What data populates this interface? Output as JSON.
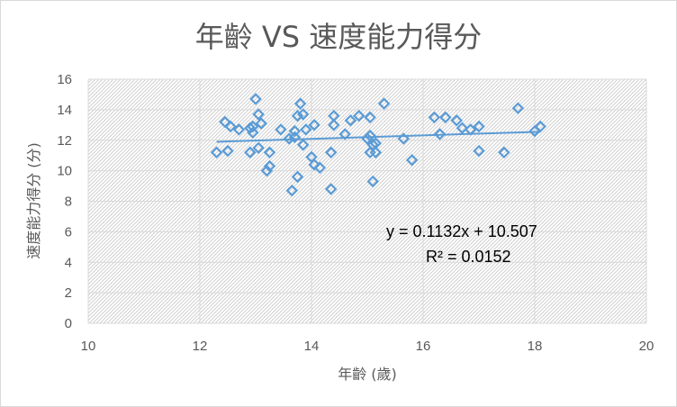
{
  "chart_data": {
    "type": "scatter",
    "title": "年齡 VS 速度能力得分",
    "xlabel": "年齡 (歲)",
    "ylabel": "速度能力得分 (分)",
    "xlim": [
      10,
      20
    ],
    "ylim": [
      0,
      16
    ],
    "x_ticks": [
      "10",
      "12",
      "14",
      "16",
      "18",
      "20"
    ],
    "y_ticks": [
      "0",
      "2",
      "4",
      "6",
      "8",
      "10",
      "12",
      "14",
      "16"
    ],
    "grid": true,
    "legend": "none",
    "background_pattern": "diagonal-hatch",
    "marker_color": "#5b9bd5",
    "marker": "diamond-hollow",
    "trendline": {
      "type": "linear",
      "slope": 0.1132,
      "intercept": 10.507,
      "x_range": [
        12.3,
        18.1
      ],
      "equation_label": "y = 0.1132x + 10.507",
      "r2_label": "R² = 0.0152"
    },
    "points": [
      [
        12.3,
        11.2
      ],
      [
        12.45,
        13.2
      ],
      [
        12.5,
        11.3
      ],
      [
        12.55,
        12.9
      ],
      [
        12.7,
        12.7
      ],
      [
        12.9,
        12.8
      ],
      [
        12.9,
        11.2
      ],
      [
        12.95,
        12.9
      ],
      [
        12.95,
        12.5
      ],
      [
        13.0,
        14.7
      ],
      [
        13.05,
        11.5
      ],
      [
        13.05,
        13.7
      ],
      [
        13.1,
        13.1
      ],
      [
        13.2,
        10.0
      ],
      [
        13.25,
        11.2
      ],
      [
        13.25,
        10.3
      ],
      [
        13.45,
        12.7
      ],
      [
        13.6,
        12.1
      ],
      [
        13.65,
        8.7
      ],
      [
        13.7,
        12.2
      ],
      [
        13.7,
        12.6
      ],
      [
        13.75,
        13.6
      ],
      [
        13.75,
        9.6
      ],
      [
        13.8,
        14.4
      ],
      [
        13.85,
        11.7
      ],
      [
        13.85,
        13.7
      ],
      [
        13.9,
        12.7
      ],
      [
        14.0,
        10.9
      ],
      [
        14.05,
        13.0
      ],
      [
        14.05,
        10.4
      ],
      [
        14.15,
        10.2
      ],
      [
        14.35,
        8.8
      ],
      [
        14.35,
        11.2
      ],
      [
        14.4,
        13.0
      ],
      [
        14.4,
        13.6
      ],
      [
        14.6,
        12.4
      ],
      [
        14.7,
        13.3
      ],
      [
        14.85,
        13.6
      ],
      [
        15.0,
        12.1
      ],
      [
        15.05,
        12.3
      ],
      [
        15.05,
        11.2
      ],
      [
        15.05,
        13.5
      ],
      [
        15.1,
        9.3
      ],
      [
        15.1,
        11.7
      ],
      [
        15.15,
        11.2
      ],
      [
        15.15,
        11.8
      ],
      [
        15.3,
        14.4
      ],
      [
        15.65,
        12.1
      ],
      [
        15.8,
        10.7
      ],
      [
        16.2,
        13.5
      ],
      [
        16.3,
        12.4
      ],
      [
        16.4,
        13.5
      ],
      [
        16.6,
        13.3
      ],
      [
        16.7,
        12.8
      ],
      [
        16.85,
        12.7
      ],
      [
        17.0,
        12.9
      ],
      [
        17.0,
        11.3
      ],
      [
        17.45,
        11.2
      ],
      [
        17.7,
        14.1
      ],
      [
        18.0,
        12.6
      ],
      [
        18.1,
        12.9
      ]
    ]
  }
}
